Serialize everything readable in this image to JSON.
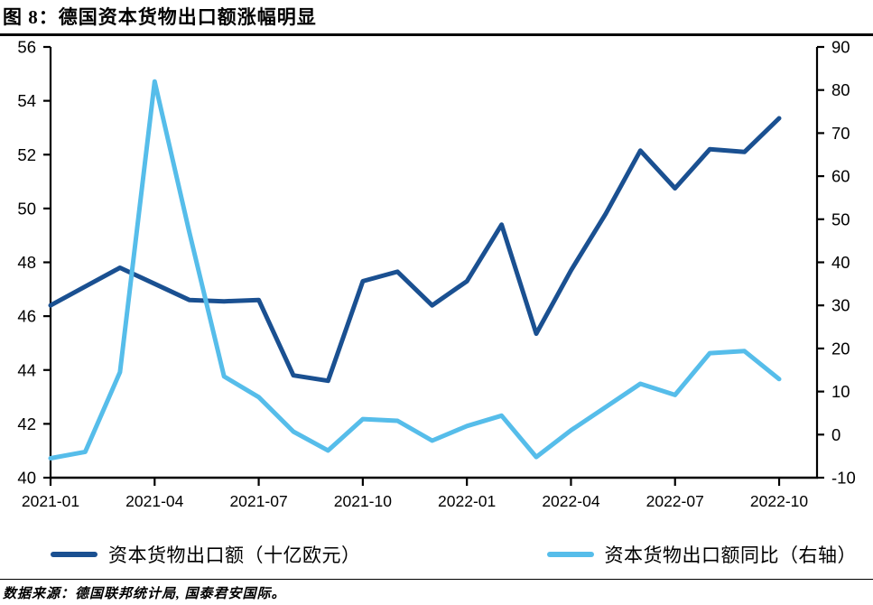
{
  "header": {
    "title": "图 8：德国资本货物出口额涨幅明显"
  },
  "colors": {
    "exports_line": "#1a5091",
    "yoy_line": "#56bdea",
    "axis": "#000000"
  },
  "legend": {
    "items": [
      {
        "label": "资本货物出口额（十亿欧元）",
        "color": "#1a5091"
      },
      {
        "label": "资本货物出口额同比（右轴）",
        "color": "#56bdea"
      }
    ]
  },
  "footer": {
    "source_note": "数据来源：德国联邦统计局, 国泰君安国际。"
  },
  "chart_data": {
    "type": "line",
    "title": "图 8：德国资本货物出口额涨幅明显",
    "categories": [
      "2021-01",
      "2021-02",
      "2021-03",
      "2021-04",
      "2021-05",
      "2021-06",
      "2021-07",
      "2021-08",
      "2021-09",
      "2021-10",
      "2021-11",
      "2021-12",
      "2022-01",
      "2022-02",
      "2022-03",
      "2022-04",
      "2022-05",
      "2022-06",
      "2022-07",
      "2022-08",
      "2022-09",
      "2022-10"
    ],
    "x_tick_labels": [
      "2021-01",
      "2021-04",
      "2021-07",
      "2021-10",
      "2022-01",
      "2022-04",
      "2022-07",
      "2022-10"
    ],
    "series": [
      {
        "name": "资本货物出口额（十亿欧元）",
        "axis": "left",
        "color": "#1a5091",
        "values": [
          46.4,
          47.1,
          47.8,
          47.2,
          46.6,
          46.55,
          46.6,
          43.8,
          43.6,
          47.3,
          47.65,
          46.4,
          47.3,
          49.4,
          45.35,
          47.7,
          49.8,
          52.15,
          50.75,
          52.2,
          52.1,
          53.35
        ]
      },
      {
        "name": "资本货物出口额同比（右轴）",
        "axis": "right",
        "color": "#56bdea",
        "values": [
          -5.5,
          -4.0,
          14.5,
          82.0,
          47.0,
          13.5,
          8.7,
          0.7,
          -3.7,
          3.6,
          3.2,
          -1.4,
          2.0,
          4.4,
          -5.2,
          1.0,
          6.4,
          11.8,
          9.2,
          18.9,
          19.4,
          12.9
        ]
      }
    ],
    "left_axis": {
      "min": 40,
      "max": 56,
      "step": 2,
      "tick_labels": [
        "40",
        "42",
        "44",
        "46",
        "48",
        "50",
        "52",
        "54",
        "56"
      ]
    },
    "right_axis": {
      "min": -10,
      "max": 90,
      "step": 10,
      "tick_labels": [
        "-10",
        "0",
        "10",
        "20",
        "30",
        "40",
        "50",
        "60",
        "70",
        "80",
        "90"
      ]
    },
    "grid": false,
    "legend_position": "bottom"
  }
}
